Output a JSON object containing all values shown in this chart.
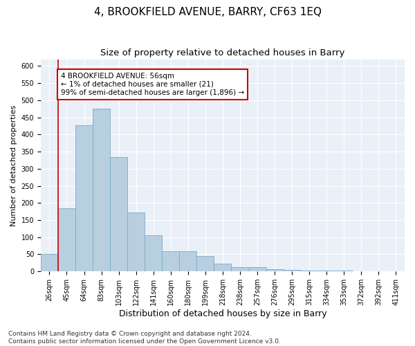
{
  "title": "4, BROOKFIELD AVENUE, BARRY, CF63 1EQ",
  "subtitle": "Size of property relative to detached houses in Barry",
  "xlabel": "Distribution of detached houses by size in Barry",
  "ylabel": "Number of detached properties",
  "categories": [
    "26sqm",
    "45sqm",
    "64sqm",
    "83sqm",
    "103sqm",
    "122sqm",
    "141sqm",
    "160sqm",
    "180sqm",
    "199sqm",
    "218sqm",
    "238sqm",
    "257sqm",
    "276sqm",
    "295sqm",
    "315sqm",
    "334sqm",
    "353sqm",
    "372sqm",
    "392sqm",
    "411sqm"
  ],
  "values": [
    50,
    185,
    428,
    475,
    335,
    172,
    105,
    60,
    60,
    45,
    22,
    12,
    12,
    7,
    5,
    3,
    3,
    2,
    1,
    1,
    1
  ],
  "bar_color": "#b8cfe0",
  "bar_edge_color": "#7aaac8",
  "background_color": "#eaf0f8",
  "grid_color": "#ffffff",
  "annotation_text": "4 BROOKFIELD AVENUE: 56sqm\n← 1% of detached houses are smaller (21)\n99% of semi-detached houses are larger (1,896) →",
  "annotation_box_color": "#ffffff",
  "annotation_box_edge_color": "#cc0000",
  "vline_x": 0.5,
  "vline_color": "#cc0000",
  "ylim": [
    0,
    620
  ],
  "yticks": [
    0,
    50,
    100,
    150,
    200,
    250,
    300,
    350,
    400,
    450,
    500,
    550,
    600
  ],
  "footer": "Contains HM Land Registry data © Crown copyright and database right 2024.\nContains public sector information licensed under the Open Government Licence v3.0.",
  "title_fontsize": 11,
  "subtitle_fontsize": 9.5,
  "xlabel_fontsize": 9,
  "ylabel_fontsize": 8,
  "tick_fontsize": 7,
  "annotation_fontsize": 7.5,
  "footer_fontsize": 6.5
}
